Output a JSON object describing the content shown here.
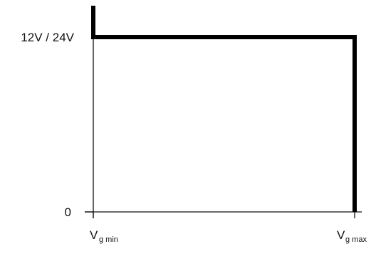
{
  "chart_data": {
    "type": "line",
    "title": "",
    "xlabel": "",
    "ylabel": "",
    "x_ticks": [
      {
        "main": "V",
        "sub": "g min"
      },
      {
        "main": "V",
        "sub": "g max"
      }
    ],
    "y_ticks": [
      "0",
      "12V / 24V"
    ],
    "series": [
      {
        "points": [
          {
            "x": "V g min",
            "y": "above 12V / 24V"
          },
          {
            "x": "V g min",
            "y": "12V / 24V"
          },
          {
            "x": "V g max",
            "y": "12V / 24V"
          },
          {
            "x": "V g max",
            "y": "0"
          }
        ]
      }
    ],
    "grid": false,
    "legend": "none",
    "colors": {
      "axis": "#111111",
      "series": "#000000"
    }
  }
}
